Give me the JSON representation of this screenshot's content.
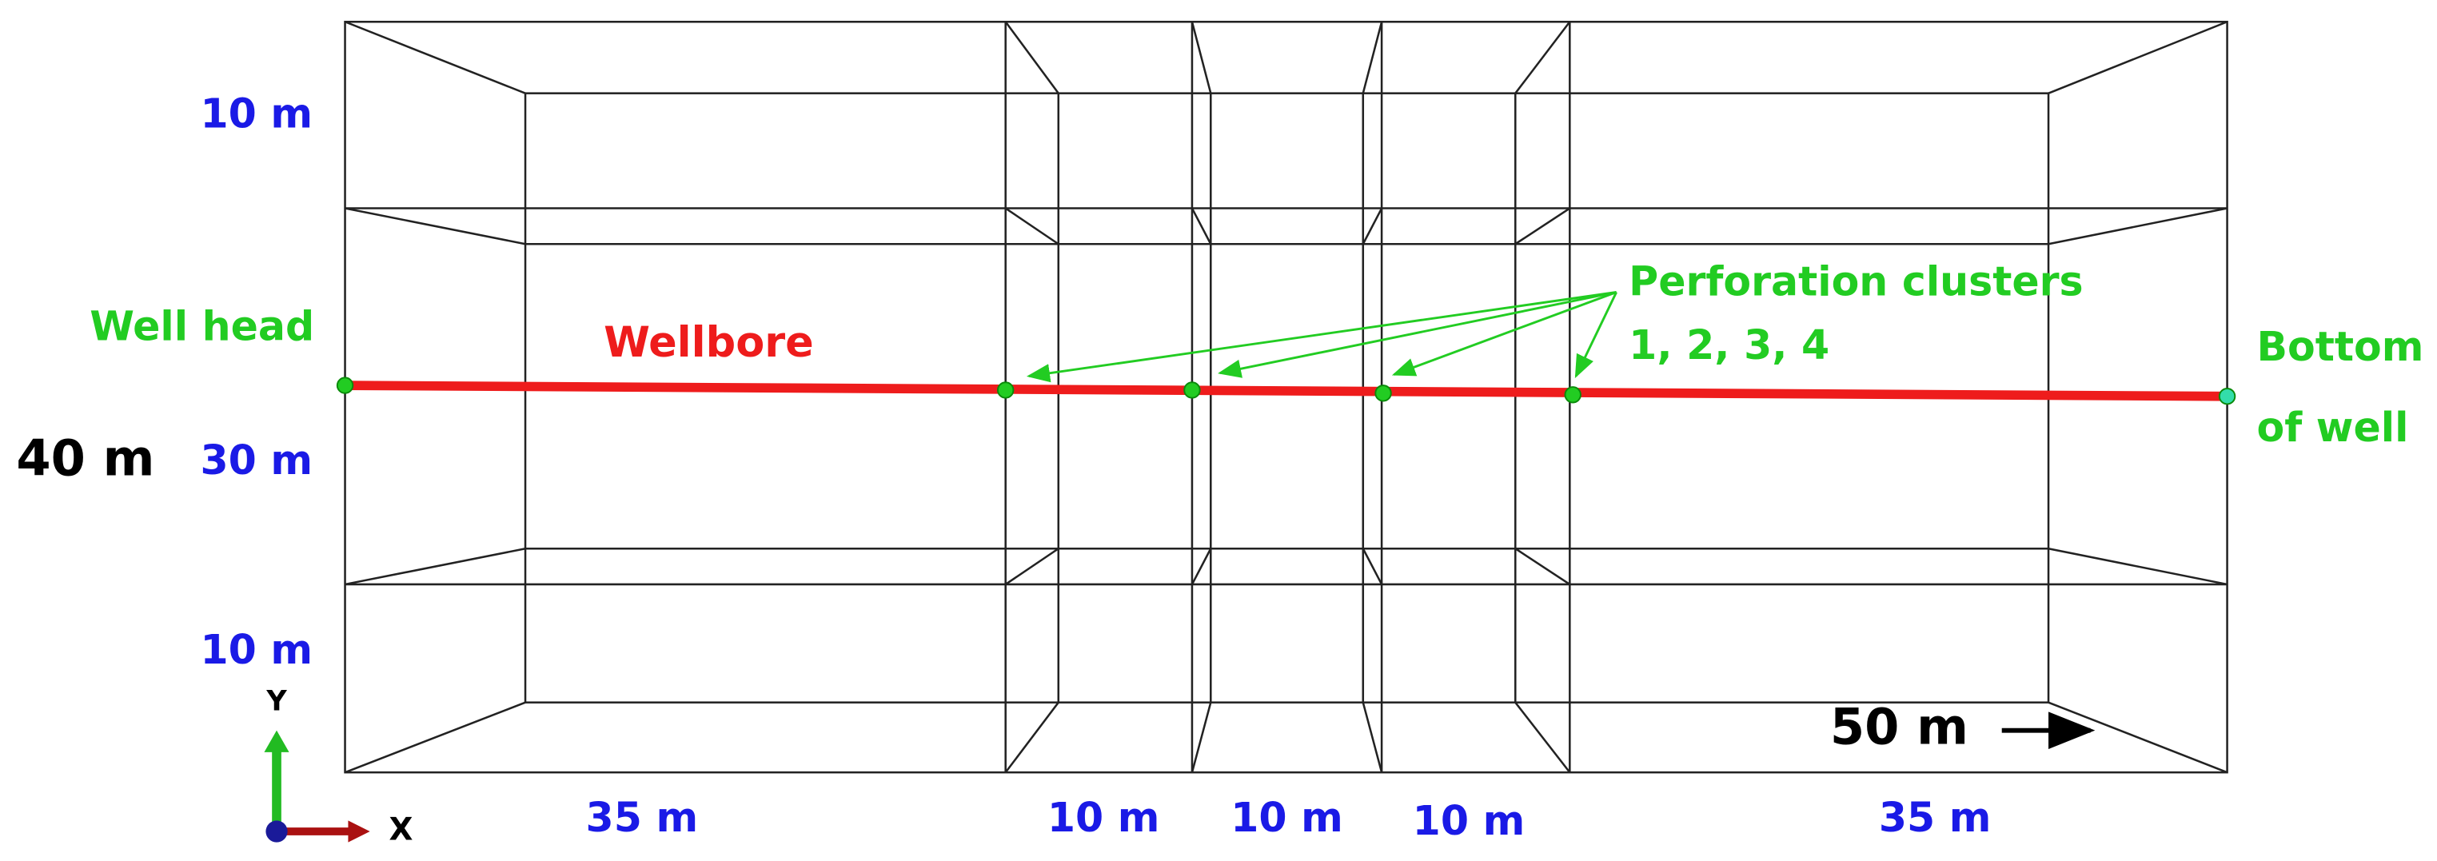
{
  "labels": {
    "well_head": "Well head",
    "wellbore": "Wellbore",
    "perforation": [
      "Perforation clusters",
      "1, 2, 3, 4"
    ],
    "bottom": [
      "Bottom",
      "of well"
    ],
    "total_height": "40 m",
    "heights": [
      "10 m",
      "30 m",
      "10 m"
    ],
    "widths": [
      "35 m",
      "10 m",
      "10 m",
      "10 m",
      "35 m"
    ],
    "depth": "50 m"
  },
  "axes": {
    "y": "Y",
    "x": "X"
  }
}
